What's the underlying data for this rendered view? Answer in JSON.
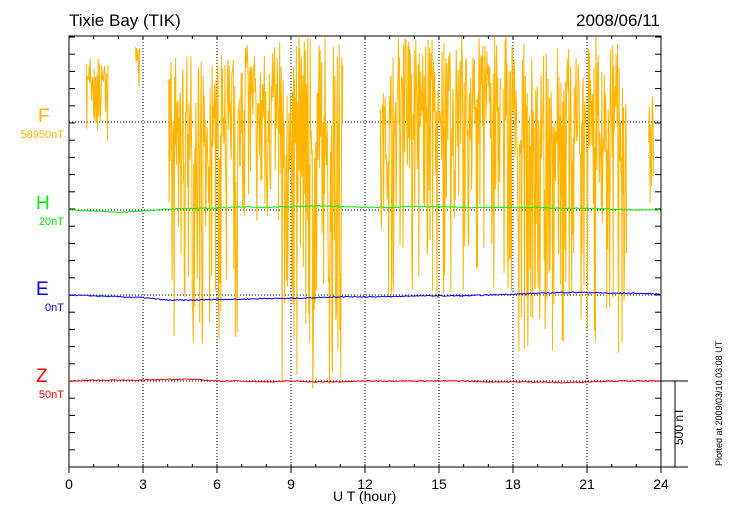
{
  "chart_data": {
    "type": "line",
    "title": "Tixie Bay (TIK)",
    "date": "2008/06/11",
    "xlabel": "U T (hour)",
    "xlim": [
      0,
      24
    ],
    "xticks": [
      "0",
      "3",
      "6",
      "9",
      "12",
      "15",
      "18",
      "21",
      "24"
    ],
    "scale_label": "500 nT",
    "footer": "Plotted at 2009/03/10 03:08 UT",
    "grid": true,
    "series": [
      {
        "name": "F",
        "baseline_label": "58950nT",
        "color": "#ffb400",
        "segments": [
          [
            0.7,
            1.6,
            -150,
            380
          ],
          [
            2.7,
            2.9,
            200,
            450
          ],
          [
            4.0,
            7.0,
            -1300,
            400
          ],
          [
            7.0,
            8.5,
            -600,
            450
          ],
          [
            8.5,
            11.1,
            -1550,
            500
          ],
          [
            12.6,
            17.5,
            -1050,
            500
          ],
          [
            17.6,
            22.6,
            -1350,
            500
          ],
          [
            23.5,
            23.7,
            -500,
            200
          ]
        ]
      },
      {
        "name": "H",
        "baseline_label": "20nT",
        "color": "#00ee00",
        "hourly": [
          0,
          -5,
          -15,
          -5,
          5,
          10,
          10,
          20,
          15,
          20,
          25,
          20,
          15,
          15,
          20,
          20,
          15,
          15,
          15,
          15,
          10,
          10,
          5,
          0,
          0
        ]
      },
      {
        "name": "E",
        "baseline_label": "0nT",
        "color": "#0000ff",
        "hourly": [
          0,
          -5,
          -10,
          -15,
          -30,
          -30,
          -25,
          -25,
          -20,
          -20,
          -15,
          -10,
          -10,
          -10,
          -5,
          -5,
          -5,
          0,
          5,
          10,
          15,
          15,
          10,
          10,
          5
        ]
      },
      {
        "name": "Z",
        "baseline_label": "50nT",
        "color": "#ff0000",
        "hourly": [
          0,
          5,
          5,
          5,
          10,
          10,
          0,
          0,
          -5,
          0,
          -5,
          -5,
          0,
          0,
          0,
          0,
          0,
          -5,
          -5,
          -5,
          -10,
          -5,
          0,
          0,
          0
        ]
      }
    ]
  }
}
